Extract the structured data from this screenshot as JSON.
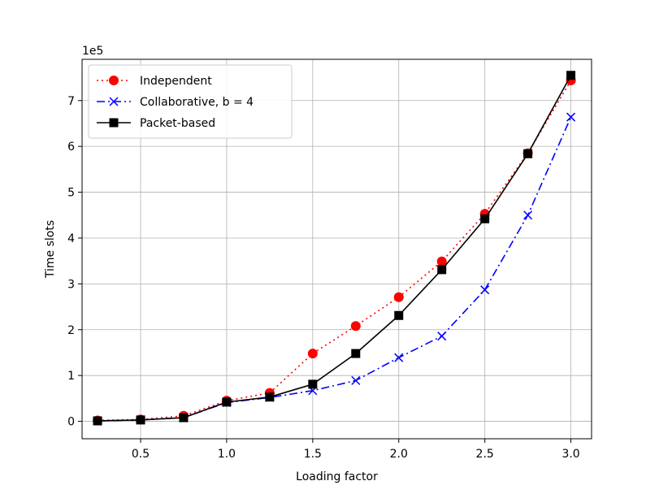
{
  "chart_data": {
    "type": "line",
    "title": "",
    "xlabel": "Loading factor",
    "ylabel": "Time slots",
    "y_offset_label": "1e5",
    "xlim": [
      0.16,
      3.12
    ],
    "ylim": [
      -0.38,
      7.9
    ],
    "x_ticks": [
      0.5,
      1.0,
      1.5,
      2.0,
      2.5,
      3.0
    ],
    "x_tick_labels": [
      "0.5",
      "1.0",
      "1.5",
      "2.0",
      "2.5",
      "3.0"
    ],
    "y_ticks": [
      0,
      1,
      2,
      3,
      4,
      5,
      6,
      7
    ],
    "y_tick_labels": [
      "0",
      "1",
      "2",
      "3",
      "4",
      "5",
      "6",
      "7"
    ],
    "grid": true,
    "legend_position": "upper-left",
    "x": [
      0.25,
      0.5,
      0.75,
      1.0,
      1.25,
      1.5,
      1.75,
      2.0,
      2.25,
      2.5,
      2.75,
      3.0
    ],
    "series": [
      {
        "name": "Independent",
        "color": "#ff0000",
        "line_style": "dotted",
        "marker": "circle",
        "values": [
          0.02,
          0.04,
          0.12,
          0.45,
          0.62,
          1.48,
          2.08,
          2.71,
          3.49,
          4.53,
          5.85,
          7.44
        ]
      },
      {
        "name": "Collaborative, b = 4",
        "color": "#0000ff",
        "line_style": "dashdot",
        "marker": "x",
        "values": [
          0.01,
          0.03,
          0.08,
          0.41,
          0.52,
          0.67,
          0.89,
          1.39,
          1.86,
          2.87,
          4.5,
          6.64
        ]
      },
      {
        "name": "Packet-based",
        "color": "#000000",
        "line_style": "solid",
        "marker": "square",
        "values": [
          0.01,
          0.03,
          0.08,
          0.42,
          0.53,
          0.81,
          1.48,
          2.31,
          3.31,
          4.42,
          5.84,
          7.55
        ]
      }
    ]
  }
}
